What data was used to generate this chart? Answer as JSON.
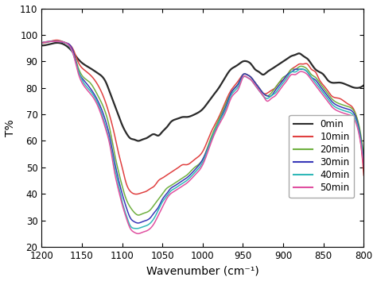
{
  "title": "",
  "xlabel": "Wavenumber (cm⁻¹)",
  "ylabel": "T%",
  "xlim": [
    1200,
    800
  ],
  "ylim": [
    20,
    110
  ],
  "yticks": [
    20,
    30,
    40,
    50,
    60,
    70,
    80,
    90,
    100,
    110
  ],
  "xticks": [
    1200,
    1150,
    1100,
    1050,
    1000,
    950,
    900,
    850,
    800
  ],
  "legend_labels": [
    "0min",
    "10min",
    "20min",
    "30min",
    "40min",
    "50min"
  ],
  "legend_colors": [
    "#2a2a2a",
    "#e04040",
    "#70b040",
    "#3838b8",
    "#30b8b8",
    "#e050a0"
  ],
  "background_color": "#ffffff",
  "series": {
    "0min": {
      "x": [
        1200,
        1190,
        1180,
        1170,
        1160,
        1155,
        1148,
        1140,
        1130,
        1120,
        1115,
        1110,
        1105,
        1100,
        1095,
        1090,
        1085,
        1080,
        1075,
        1070,
        1065,
        1060,
        1055,
        1050,
        1045,
        1040,
        1035,
        1030,
        1025,
        1020,
        1010,
        1000,
        990,
        980,
        970,
        965,
        960,
        955,
        950,
        945,
        940,
        935,
        930,
        925,
        920,
        915,
        910,
        905,
        900,
        895,
        890,
        885,
        880,
        875,
        870,
        865,
        860,
        855,
        850,
        845,
        840,
        830,
        820,
        810,
        800
      ],
      "y": [
        96,
        96.5,
        97,
        96,
        93,
        91,
        89,
        87.5,
        85.5,
        82,
        78,
        74,
        70,
        66,
        63,
        61,
        60.5,
        60,
        60.5,
        61,
        62,
        62.5,
        62,
        63.5,
        65,
        67,
        68,
        68.5,
        69,
        69,
        70,
        72,
        76,
        80,
        85,
        87,
        88,
        89,
        90,
        90,
        89,
        87,
        86,
        85,
        86,
        87,
        88,
        89,
        90,
        91,
        92,
        92.5,
        93,
        92,
        91,
        89,
        87,
        86,
        85,
        83,
        82,
        82,
        81,
        80,
        81
      ]
    },
    "10min": {
      "x": [
        1200,
        1190,
        1180,
        1170,
        1160,
        1155,
        1148,
        1140,
        1130,
        1120,
        1115,
        1110,
        1105,
        1100,
        1095,
        1090,
        1085,
        1080,
        1075,
        1070,
        1065,
        1060,
        1055,
        1050,
        1045,
        1040,
        1035,
        1030,
        1025,
        1020,
        1010,
        1000,
        990,
        980,
        970,
        965,
        960,
        955,
        950,
        945,
        940,
        935,
        930,
        925,
        920,
        915,
        910,
        905,
        900,
        895,
        890,
        885,
        880,
        875,
        870,
        865,
        860,
        855,
        850,
        845,
        840,
        830,
        820,
        810,
        800
      ],
      "y": [
        97,
        97.5,
        98,
        97,
        94,
        90,
        87,
        85,
        81,
        74,
        69,
        63,
        56,
        50,
        44,
        41,
        40,
        40,
        40.5,
        41,
        42,
        43,
        45,
        46,
        47,
        48,
        49,
        50,
        51,
        51,
        53,
        56,
        63,
        69,
        76,
        79,
        81,
        83,
        85,
        85,
        84,
        82,
        80,
        78,
        78,
        79,
        80,
        82,
        83,
        85,
        87,
        88,
        89,
        89,
        89,
        87,
        86,
        83,
        81,
        79,
        77,
        76,
        74,
        70,
        47
      ]
    },
    "20min": {
      "x": [
        1200,
        1190,
        1180,
        1170,
        1160,
        1155,
        1148,
        1140,
        1130,
        1120,
        1115,
        1110,
        1105,
        1100,
        1095,
        1090,
        1085,
        1080,
        1075,
        1070,
        1065,
        1060,
        1055,
        1050,
        1045,
        1040,
        1035,
        1030,
        1025,
        1020,
        1010,
        1000,
        990,
        980,
        970,
        965,
        960,
        955,
        950,
        945,
        940,
        935,
        930,
        925,
        920,
        915,
        910,
        905,
        900,
        895,
        890,
        885,
        880,
        875,
        870,
        865,
        860,
        855,
        850,
        845,
        840,
        830,
        820,
        810,
        800
      ],
      "y": [
        97,
        97.5,
        97.5,
        97,
        93,
        88,
        84,
        82,
        77,
        70,
        64,
        56,
        49,
        43,
        38,
        35,
        33,
        32,
        32.5,
        33,
        34,
        36,
        38,
        40,
        42,
        43,
        44,
        45,
        46,
        47,
        50,
        53,
        61,
        68,
        75,
        78,
        80,
        82,
        85,
        85,
        84,
        82,
        80,
        78,
        77,
        78,
        80,
        82,
        84,
        85,
        87,
        87,
        88,
        88,
        87,
        85,
        84,
        82,
        80,
        78,
        76,
        74,
        73,
        70,
        54
      ]
    },
    "30min": {
      "x": [
        1200,
        1190,
        1180,
        1170,
        1160,
        1155,
        1148,
        1140,
        1130,
        1120,
        1115,
        1110,
        1105,
        1100,
        1095,
        1090,
        1085,
        1080,
        1075,
        1070,
        1065,
        1060,
        1055,
        1050,
        1045,
        1040,
        1035,
        1030,
        1025,
        1020,
        1010,
        1000,
        990,
        980,
        970,
        965,
        960,
        955,
        950,
        945,
        940,
        935,
        930,
        925,
        920,
        915,
        910,
        905,
        900,
        895,
        890,
        885,
        880,
        875,
        870,
        865,
        860,
        855,
        850,
        845,
        840,
        830,
        820,
        810,
        800
      ],
      "y": [
        97,
        97.5,
        97.5,
        97,
        93,
        87,
        83,
        80,
        75,
        67,
        61,
        53,
        46,
        40,
        35,
        31,
        29.5,
        29,
        29.5,
        30,
        31,
        33,
        35,
        38,
        40,
        42,
        43,
        44,
        45,
        46,
        49,
        53,
        60,
        67,
        74,
        78,
        80,
        82,
        85,
        85,
        84,
        82,
        80,
        78,
        77,
        77,
        79,
        81,
        83,
        85,
        86,
        87,
        87,
        87,
        86,
        84,
        83,
        81,
        79,
        77,
        75,
        73,
        72,
        69,
        52
      ]
    },
    "40min": {
      "x": [
        1200,
        1190,
        1180,
        1170,
        1160,
        1155,
        1148,
        1140,
        1130,
        1120,
        1115,
        1110,
        1105,
        1100,
        1095,
        1090,
        1085,
        1080,
        1075,
        1070,
        1065,
        1060,
        1055,
        1050,
        1045,
        1040,
        1035,
        1030,
        1025,
        1020,
        1010,
        1000,
        990,
        980,
        970,
        965,
        960,
        955,
        950,
        945,
        940,
        935,
        930,
        925,
        920,
        915,
        910,
        905,
        900,
        895,
        890,
        885,
        880,
        875,
        870,
        865,
        860,
        855,
        850,
        845,
        840,
        830,
        820,
        810,
        800
      ],
      "y": [
        97,
        97.5,
        97.5,
        97,
        92,
        87,
        82,
        79,
        74,
        65,
        59,
        51,
        44,
        37,
        32,
        28,
        27,
        27,
        27.5,
        28,
        29,
        31,
        34,
        37,
        39,
        41,
        42,
        43,
        44,
        45,
        48,
        52,
        60,
        67,
        73,
        77,
        79,
        81,
        84,
        84,
        83,
        81,
        79,
        77,
        76,
        77,
        78,
        80,
        82,
        84,
        86,
        86,
        87,
        87,
        86,
        84,
        82,
        80,
        78,
        76,
        74,
        72,
        71,
        68,
        51
      ]
    },
    "50min": {
      "x": [
        1200,
        1190,
        1180,
        1170,
        1160,
        1155,
        1148,
        1140,
        1130,
        1120,
        1115,
        1110,
        1105,
        1100,
        1095,
        1090,
        1085,
        1080,
        1075,
        1070,
        1065,
        1060,
        1055,
        1050,
        1045,
        1040,
        1035,
        1030,
        1025,
        1020,
        1010,
        1000,
        990,
        980,
        970,
        965,
        960,
        955,
        950,
        945,
        940,
        935,
        930,
        925,
        920,
        915,
        910,
        905,
        900,
        895,
        890,
        885,
        880,
        875,
        870,
        865,
        860,
        855,
        850,
        845,
        840,
        830,
        820,
        810,
        800
      ],
      "y": [
        97,
        97.5,
        97.5,
        97,
        92,
        86,
        81,
        78,
        73,
        64,
        58,
        49,
        42,
        36,
        31,
        27,
        25.5,
        25,
        25.5,
        26,
        27,
        29,
        32,
        35,
        38,
        40,
        41,
        42,
        43,
        44,
        47,
        51,
        59,
        66,
        72,
        76,
        78,
        80,
        84,
        84,
        83,
        81,
        79,
        77,
        75,
        76,
        77,
        79,
        81,
        83,
        85,
        85,
        86,
        86,
        85,
        83,
        81,
        79,
        77,
        75,
        73,
        71,
        70,
        67,
        50
      ]
    }
  }
}
